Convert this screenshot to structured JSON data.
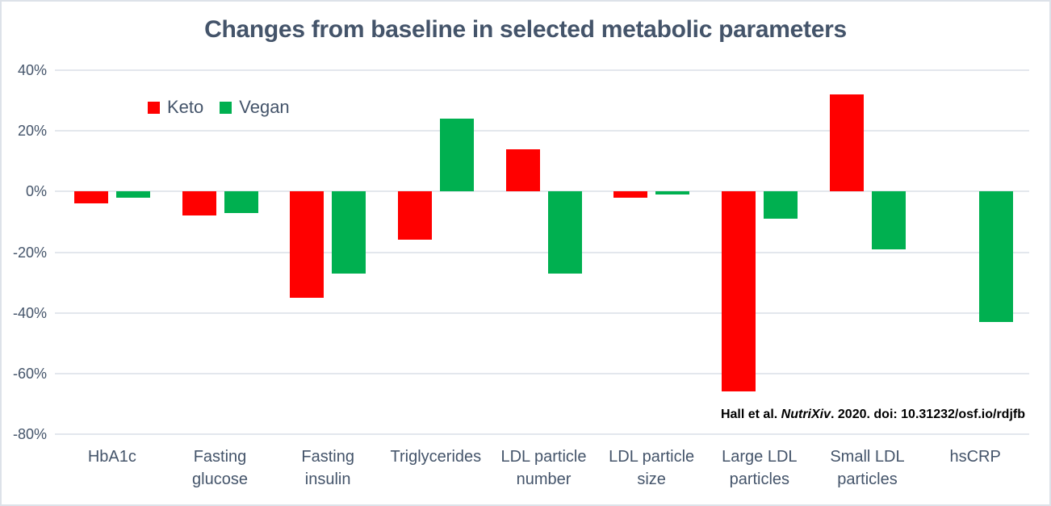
{
  "chart_data": {
    "type": "bar",
    "title": "Changes from baseline in selected metabolic parameters",
    "categories": [
      "HbA1c",
      "Fasting glucose",
      "Fasting insulin",
      "Triglycerides",
      "LDL particle number",
      "LDL particle size",
      "Large LDL particles",
      "Small LDL particles",
      "hsCRP"
    ],
    "category_label_lines": [
      [
        "HbA1c"
      ],
      [
        "Fasting",
        "glucose"
      ],
      [
        "Fasting",
        "insulin"
      ],
      [
        "Triglycerides"
      ],
      [
        "LDL particle",
        "number"
      ],
      [
        "LDL particle",
        "size"
      ],
      [
        "Large LDL",
        "particles"
      ],
      [
        "Small LDL",
        "particles"
      ],
      [
        "hsCRP"
      ]
    ],
    "series": [
      {
        "name": "Keto",
        "color": "#FF0000",
        "values": [
          -4,
          -8,
          -35,
          -16,
          14,
          -2,
          -66,
          32,
          0
        ]
      },
      {
        "name": "Vegan",
        "color": "#00B050",
        "values": [
          -2,
          -7,
          -27,
          24,
          -27,
          -1,
          -9,
          -19,
          -43
        ]
      }
    ],
    "value_unit": "%",
    "ylim": [
      -80,
      40
    ],
    "ytick_labels": [
      "40%",
      "20%",
      "0%",
      "-20%",
      "-40%",
      "-60%",
      "-80%"
    ],
    "ytick_values": [
      40,
      20,
      0,
      -20,
      -40,
      -60,
      -80
    ],
    "grid": true,
    "legend_position": "top-left",
    "annotation": {
      "prefix": "Hall et al. ",
      "italic": "NutriXiv",
      "suffix": ". 2020. doi: 10.31232/osf.io/rdjfb"
    }
  },
  "colors": {
    "title_text": "#44546A",
    "axis_text": "#44546A",
    "gridline": "#E3E7ED",
    "keto": "#FF0000",
    "vegan": "#00B050",
    "annotation_text": "#000000",
    "frame_border": "#DDE2E9",
    "background": "#FFFFFF"
  }
}
